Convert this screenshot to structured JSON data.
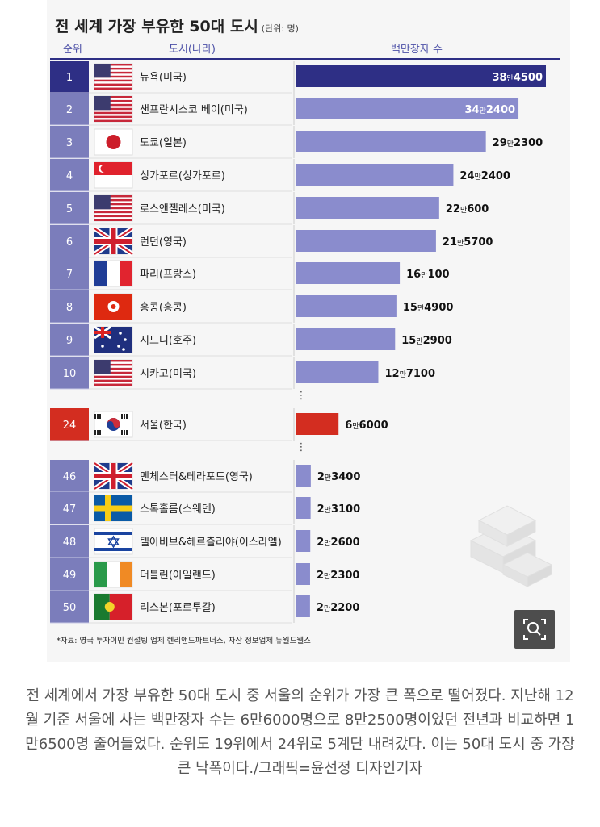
{
  "title": "전 세계 가장 부유한 50대 도시",
  "unit": "(단위: 명)",
  "headers": {
    "rank": "순위",
    "city": "도시(나라)",
    "count": "백만장자 수"
  },
  "ellipsis": "⋮",
  "source": "*자료: 영국 투자이민 컨설팅 업체 헨리앤드파트너스, 자산 정보업체 뉴월드웰스",
  "caption": "전 세계에서 가장 부유한 50대 도시 중 서울의 순위가 가장 큰 폭으로 떨어졌다. 지난해 12월 기준 서울에 사는 백만장자 수는 6만6000명으로 8만2500명이었던 전년과 비교하면 1만6500명 줄어들었다. 순위도 19위에서 24위로 5계단 내려갔다. 이는 50대 도시 중 가장 큰 낙폭이다./그래픽=윤선정 디자인기자",
  "colors": {
    "rank_bg": "#7b7dbb",
    "rank_top": "#2e2f85",
    "bar": "#8a8ccd",
    "bar_top": "#2e2f85",
    "seoul": "#d32d20"
  },
  "chart_data": {
    "type": "bar",
    "orientation": "horizontal",
    "title": "전 세계 가장 부유한 50대 도시",
    "unit": "명",
    "rows": [
      {
        "rank": "1",
        "city": "뉴욕(미국)",
        "flag": "us-flag-icon",
        "value": 384500,
        "label_big": "38",
        "label_man": "만",
        "label_rest": "4500"
      },
      {
        "rank": "2",
        "city": "샌프란시스코 베이(미국)",
        "flag": "us-flag-icon",
        "value": 342400,
        "label_big": "34",
        "label_man": "만",
        "label_rest": "2400"
      },
      {
        "rank": "3",
        "city": "도쿄(일본)",
        "flag": "japan-flag-icon",
        "value": 292300,
        "label_big": "29",
        "label_man": "만",
        "label_rest": "2300"
      },
      {
        "rank": "4",
        "city": "싱가포르(싱가포르)",
        "flag": "singapore-flag-icon",
        "value": 242400,
        "label_big": "24",
        "label_man": "만",
        "label_rest": "2400"
      },
      {
        "rank": "5",
        "city": "로스앤젤레스(미국)",
        "flag": "us-flag-icon",
        "value": 220600,
        "label_big": "22",
        "label_man": "만",
        "label_rest": "600"
      },
      {
        "rank": "6",
        "city": "런던(영국)",
        "flag": "uk-flag-icon",
        "value": 215700,
        "label_big": "21",
        "label_man": "만",
        "label_rest": "5700"
      },
      {
        "rank": "7",
        "city": "파리(프랑스)",
        "flag": "france-flag-icon",
        "value": 160100,
        "label_big": "16",
        "label_man": "만",
        "label_rest": "100"
      },
      {
        "rank": "8",
        "city": "홍콩(홍콩)",
        "flag": "hongkong-flag-icon",
        "value": 154900,
        "label_big": "15",
        "label_man": "만",
        "label_rest": "4900"
      },
      {
        "rank": "9",
        "city": "시드니(호주)",
        "flag": "australia-flag-icon",
        "value": 152900,
        "label_big": "15",
        "label_man": "만",
        "label_rest": "2900"
      },
      {
        "rank": "10",
        "city": "시카고(미국)",
        "flag": "us-flag-icon",
        "value": 127100,
        "label_big": "12",
        "label_man": "만",
        "label_rest": "7100"
      },
      {
        "rank": "24",
        "city": "서울(한국)",
        "flag": "korea-flag-icon",
        "value": 66000,
        "label_big": "6",
        "label_man": "만",
        "label_rest": "6000"
      },
      {
        "rank": "46",
        "city": "멘체스터&테라포드(영국)",
        "flag": "uk-flag-icon",
        "value": 23400,
        "label_big": "2",
        "label_man": "만",
        "label_rest": "3400"
      },
      {
        "rank": "47",
        "city": "스톡홀름(스웨덴)",
        "flag": "sweden-flag-icon",
        "value": 23100,
        "label_big": "2",
        "label_man": "만",
        "label_rest": "3100"
      },
      {
        "rank": "48",
        "city": "텔아비브&헤르츨리야(이스라엘)",
        "flag": "israel-flag-icon",
        "value": 22600,
        "label_big": "2",
        "label_man": "만",
        "label_rest": "2600"
      },
      {
        "rank": "49",
        "city": "더블린(아일랜드)",
        "flag": "ireland-flag-icon",
        "value": 22300,
        "label_big": "2",
        "label_man": "만",
        "label_rest": "2300"
      },
      {
        "rank": "50",
        "city": "리스본(포르투갈)",
        "flag": "portugal-flag-icon",
        "value": 22200,
        "label_big": "2",
        "label_man": "만",
        "label_rest": "2200"
      }
    ]
  }
}
